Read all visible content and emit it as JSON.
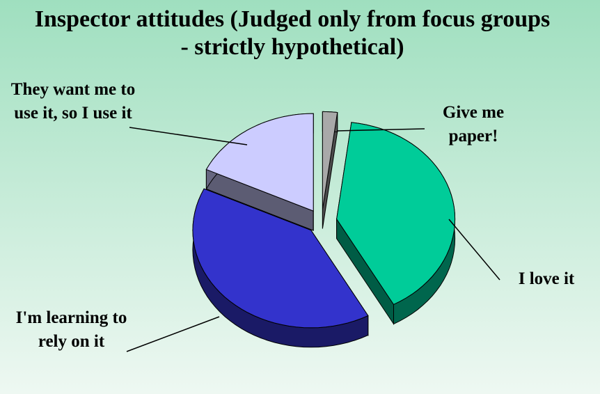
{
  "chart_data": {
    "type": "pie3d",
    "title": "Inspector attitudes (Judged only from focus groups - strictly hypothetical)",
    "categories": [
      "Give me paper!",
      "I love it",
      "I'm learning to rely on it",
      "They want me to use it, so I use it"
    ],
    "values": [
      2,
      40,
      40,
      18
    ],
    "colors": [
      "#a9a9a9",
      "#00cc99",
      "#3333cc",
      "#ccccff"
    ]
  }
}
